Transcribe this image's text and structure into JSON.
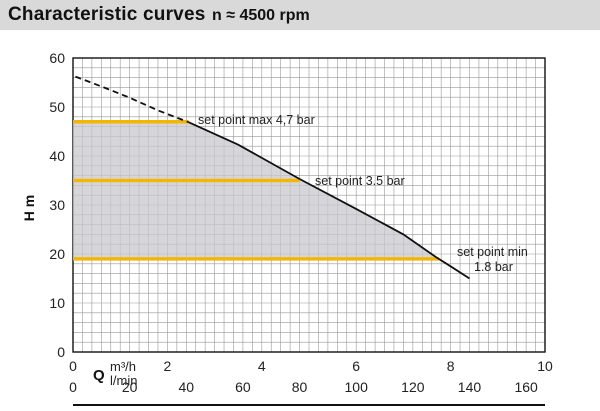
{
  "header": {
    "title": "Characteristic curves",
    "subtitle": "n ≈ 4500 rpm"
  },
  "colors": {
    "header_bg": "#d9d9d9",
    "grid": "#999999",
    "curve": "#111111",
    "setpoint_line": "#f2b705",
    "shaded_area": "#c8c8ce"
  },
  "chart_data": {
    "type": "line",
    "ylabel": "H m",
    "xlabel_top": "Q",
    "x_units": [
      "m³/h",
      "l/min"
    ],
    "xlim": [
      0,
      10
    ],
    "ylim": [
      0,
      60
    ],
    "x_ticks": [
      "0",
      "2",
      "4",
      "6",
      "8",
      "10"
    ],
    "x_ticks_lmin": [
      "0",
      "20",
      "40",
      "60",
      "80",
      "100",
      "120",
      "140",
      "160"
    ],
    "y_ticks": [
      "0",
      "10",
      "20",
      "30",
      "40",
      "50",
      "60"
    ],
    "grid": true,
    "series": [
      {
        "style": "dashed",
        "points": [
          [
            0.05,
            56.2
          ],
          [
            0.6,
            54.2
          ],
          [
            1.2,
            51.9
          ],
          [
            1.8,
            49.3
          ],
          [
            2.45,
            46.9
          ]
        ]
      },
      {
        "style": "solid",
        "points": [
          [
            2.45,
            46.9
          ],
          [
            3.5,
            42.3
          ],
          [
            4.8,
            35.3
          ],
          [
            6.0,
            29.2
          ],
          [
            7.0,
            24.0
          ],
          [
            7.7,
            19.3
          ],
          [
            8.0,
            17.5
          ],
          [
            8.4,
            15.0
          ]
        ]
      }
    ],
    "set_points": [
      {
        "label": "set point max 4,7 bar",
        "h": 47,
        "q_end": 2.45
      },
      {
        "label": "set point 3.5 bar",
        "h": 35,
        "q_end": 4.8
      },
      {
        "label_line1": "set point min",
        "label_line2": "1.8 bar",
        "h": 19,
        "q_end": 7.75
      }
    ]
  }
}
